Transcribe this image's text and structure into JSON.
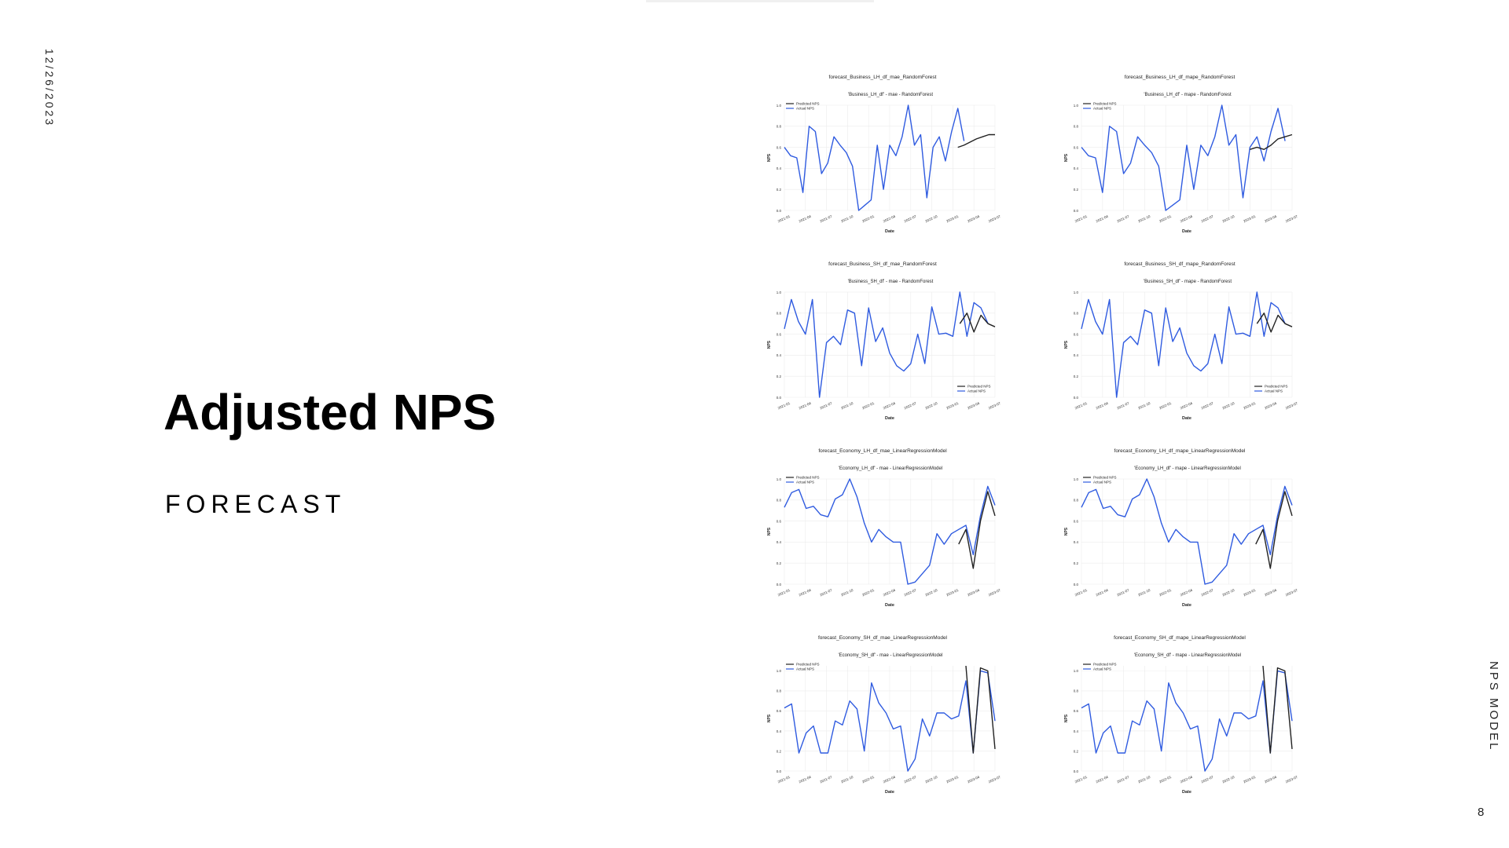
{
  "slide": {
    "date": "12/26/2023",
    "title": "Adjusted NPS",
    "subtitle": "FORECAST",
    "side_label": "NPS MODEL",
    "page_number": "8"
  },
  "colors": {
    "actual": "#2f5be0",
    "predicted": "#222222",
    "grid": "#ececec",
    "axis_text": "#333333"
  },
  "chart_data": [
    {
      "type": "line",
      "title": "forecast_Business_LH_df_mae_RandomForest",
      "subtitle": "'Business_LH_df' - mae - RandomForest",
      "xlabel": "Date",
      "ylabel": "NPS",
      "ylim": [
        0,
        1
      ],
      "legend_placement": "top-left",
      "grid": true,
      "x_ticks": [
        "2021-01",
        "2021-04",
        "2021-07",
        "2021-10",
        "2022-01",
        "2022-04",
        "2022-07",
        "2022-10",
        "2023-01",
        "2023-04",
        "2023-07"
      ],
      "series": [
        {
          "name": "Predicted NPS",
          "start_index": 28,
          "values": [
            0.6,
            0.62,
            0.65,
            0.68,
            0.7,
            0.72,
            0.72
          ]
        },
        {
          "name": "Actual NPS",
          "start_index": 0,
          "values": [
            0.6,
            0.52,
            0.5,
            0.17,
            0.8,
            0.75,
            0.35,
            0.45,
            0.7,
            0.62,
            0.55,
            0.42,
            0.0,
            0.05,
            0.1,
            0.62,
            0.2,
            0.62,
            0.52,
            0.7,
            1.0,
            0.62,
            0.72,
            0.12,
            0.6,
            0.7,
            0.47,
            0.75,
            0.97,
            0.66
          ]
        }
      ]
    },
    {
      "type": "line",
      "title": "forecast_Business_LH_df_mape_RandomForest",
      "subtitle": "'Business_LH_df' - mape - RandomForest",
      "xlabel": "Date",
      "ylabel": "NPS",
      "ylim": [
        0,
        1
      ],
      "legend_placement": "top-left",
      "grid": true,
      "x_ticks": [
        "2021-01",
        "2021-04",
        "2021-07",
        "2021-10",
        "2022-01",
        "2022-04",
        "2022-07",
        "2022-10",
        "2023-01",
        "2023-04",
        "2023-07"
      ],
      "series": [
        {
          "name": "Predicted NPS",
          "start_index": 24,
          "values": [
            0.58,
            0.6,
            0.58,
            0.62,
            0.68,
            0.7,
            0.72
          ]
        },
        {
          "name": "Actual NPS",
          "start_index": 0,
          "values": [
            0.6,
            0.52,
            0.5,
            0.17,
            0.8,
            0.75,
            0.35,
            0.45,
            0.7,
            0.62,
            0.55,
            0.42,
            0.0,
            0.05,
            0.1,
            0.62,
            0.2,
            0.62,
            0.52,
            0.7,
            1.0,
            0.62,
            0.72,
            0.12,
            0.6,
            0.7,
            0.47,
            0.75,
            0.97,
            0.66
          ]
        }
      ]
    },
    {
      "type": "line",
      "title": "forecast_Business_SH_df_mae_RandomForest",
      "subtitle": "'Business_SH_df' - mae - RandomForest",
      "xlabel": "Date",
      "ylabel": "NPS",
      "ylim": [
        0,
        1
      ],
      "legend_placement": "bottom-right",
      "grid": true,
      "x_ticks": [
        "2021-01",
        "2021-04",
        "2021-07",
        "2021-10",
        "2022-01",
        "2022-04",
        "2022-07",
        "2022-10",
        "2023-01",
        "2023-04",
        "2023-07"
      ],
      "series": [
        {
          "name": "Predicted NPS",
          "start_index": 25,
          "values": [
            0.7,
            0.8,
            0.62,
            0.78,
            0.7,
            0.67
          ]
        },
        {
          "name": "Actual NPS",
          "start_index": 0,
          "values": [
            0.65,
            0.93,
            0.72,
            0.6,
            0.93,
            0.0,
            0.52,
            0.58,
            0.5,
            0.83,
            0.8,
            0.3,
            0.85,
            0.53,
            0.66,
            0.42,
            0.3,
            0.25,
            0.32,
            0.6,
            0.32,
            0.86,
            0.6,
            0.61,
            0.58,
            1.0,
            0.58,
            0.9,
            0.85,
            0.7
          ]
        }
      ]
    },
    {
      "type": "line",
      "title": "forecast_Business_SH_df_mape_RandomForest",
      "subtitle": "'Business_SH_df' - mape - RandomForest",
      "xlabel": "Date",
      "ylabel": "NPS",
      "ylim": [
        0,
        1
      ],
      "legend_placement": "bottom-right",
      "grid": true,
      "x_ticks": [
        "2021-01",
        "2021-04",
        "2021-07",
        "2021-10",
        "2022-01",
        "2022-04",
        "2022-07",
        "2022-10",
        "2023-01",
        "2023-04",
        "2023-07"
      ],
      "series": [
        {
          "name": "Predicted NPS",
          "start_index": 25,
          "values": [
            0.7,
            0.8,
            0.62,
            0.78,
            0.7,
            0.67
          ]
        },
        {
          "name": "Actual NPS",
          "start_index": 0,
          "values": [
            0.65,
            0.93,
            0.72,
            0.6,
            0.93,
            0.0,
            0.52,
            0.58,
            0.5,
            0.83,
            0.8,
            0.3,
            0.85,
            0.53,
            0.66,
            0.42,
            0.3,
            0.25,
            0.32,
            0.6,
            0.32,
            0.86,
            0.6,
            0.61,
            0.58,
            1.0,
            0.58,
            0.9,
            0.85,
            0.7
          ]
        }
      ]
    },
    {
      "type": "line",
      "title": "forecast_Economy_LH_df_mae_LinearRegressionModel",
      "subtitle": "'Economy_LH_df' - mae - LinearRegressionModel",
      "xlabel": "Date",
      "ylabel": "NPS",
      "ylim": [
        0,
        1
      ],
      "legend_placement": "top-left",
      "grid": true,
      "x_ticks": [
        "2021-01",
        "2021-04",
        "2021-07",
        "2021-10",
        "2022-01",
        "2022-04",
        "2022-07",
        "2022-10",
        "2023-01",
        "2023-04",
        "2023-07"
      ],
      "series": [
        {
          "name": "Predicted NPS",
          "start_index": 24,
          "values": [
            0.38,
            0.52,
            0.15,
            0.6,
            0.88,
            0.65
          ]
        },
        {
          "name": "Actual NPS",
          "start_index": 0,
          "values": [
            0.73,
            0.87,
            0.9,
            0.72,
            0.74,
            0.66,
            0.64,
            0.81,
            0.85,
            1.0,
            0.83,
            0.58,
            0.4,
            0.52,
            0.45,
            0.4,
            0.4,
            0.0,
            0.02,
            0.1,
            0.18,
            0.48,
            0.38,
            0.48,
            0.52,
            0.56,
            0.28,
            0.65,
            0.93,
            0.75
          ]
        }
      ]
    },
    {
      "type": "line",
      "title": "forecast_Economy_LH_df_mape_LinearRegressionModel",
      "subtitle": "'Economy_LH_df' - mape - LinearRegressionModel",
      "xlabel": "Date",
      "ylabel": "NPS",
      "ylim": [
        0,
        1
      ],
      "legend_placement": "top-left",
      "grid": true,
      "x_ticks": [
        "2021-01",
        "2021-04",
        "2021-07",
        "2021-10",
        "2022-01",
        "2022-04",
        "2022-07",
        "2022-10",
        "2023-01",
        "2023-04",
        "2023-07"
      ],
      "series": [
        {
          "name": "Predicted NPS",
          "start_index": 24,
          "values": [
            0.38,
            0.52,
            0.15,
            0.6,
            0.88,
            0.65
          ]
        },
        {
          "name": "Actual NPS",
          "start_index": 0,
          "values": [
            0.73,
            0.87,
            0.9,
            0.72,
            0.74,
            0.66,
            0.64,
            0.81,
            0.85,
            1.0,
            0.83,
            0.58,
            0.4,
            0.52,
            0.45,
            0.4,
            0.4,
            0.0,
            0.02,
            0.1,
            0.18,
            0.48,
            0.38,
            0.48,
            0.52,
            0.56,
            0.28,
            0.65,
            0.93,
            0.75
          ]
        }
      ]
    },
    {
      "type": "line",
      "title": "forecast_Economy_SH_df_mae_LinearRegressionModel",
      "subtitle": "'Economy_SH_df' - mae - LinearRegressionModel",
      "xlabel": "Date",
      "ylabel": "NPS",
      "ylim": [
        0,
        1.05
      ],
      "legend_placement": "top-left",
      "grid": true,
      "x_ticks": [
        "2021-01",
        "2021-04",
        "2021-07",
        "2021-10",
        "2022-01",
        "2022-04",
        "2022-07",
        "2022-10",
        "2023-01",
        "2023-04",
        "2023-07"
      ],
      "series": [
        {
          "name": "Predicted NPS",
          "start_index": 25,
          "values": [
            1.05,
            0.18,
            1.03,
            1.0,
            0.22
          ]
        },
        {
          "name": "Actual NPS",
          "start_index": 0,
          "values": [
            0.63,
            0.67,
            0.18,
            0.38,
            0.45,
            0.18,
            0.18,
            0.5,
            0.46,
            0.7,
            0.62,
            0.2,
            0.88,
            0.68,
            0.58,
            0.42,
            0.45,
            0.0,
            0.12,
            0.52,
            0.35,
            0.58,
            0.58,
            0.52,
            0.55,
            0.9,
            0.18,
            1.0,
            0.98,
            0.5
          ]
        }
      ]
    },
    {
      "type": "line",
      "title": "forecast_Economy_SH_df_mape_LinearRegressionModel",
      "subtitle": "'Economy_SH_df' - mape - LinearRegressionModel",
      "xlabel": "Date",
      "ylabel": "NPS",
      "ylim": [
        0,
        1.05
      ],
      "legend_placement": "top-left",
      "grid": true,
      "x_ticks": [
        "2021-01",
        "2021-04",
        "2021-07",
        "2021-10",
        "2022-01",
        "2022-04",
        "2022-07",
        "2022-10",
        "2023-01",
        "2023-04",
        "2023-07"
      ],
      "series": [
        {
          "name": "Predicted NPS",
          "start_index": 25,
          "values": [
            1.05,
            0.18,
            1.03,
            1.0,
            0.22
          ]
        },
        {
          "name": "Actual NPS",
          "start_index": 0,
          "values": [
            0.63,
            0.67,
            0.18,
            0.38,
            0.45,
            0.18,
            0.18,
            0.5,
            0.46,
            0.7,
            0.62,
            0.2,
            0.88,
            0.68,
            0.58,
            0.42,
            0.45,
            0.0,
            0.12,
            0.52,
            0.35,
            0.58,
            0.58,
            0.52,
            0.55,
            0.9,
            0.18,
            1.0,
            0.98,
            0.5
          ]
        }
      ]
    }
  ]
}
